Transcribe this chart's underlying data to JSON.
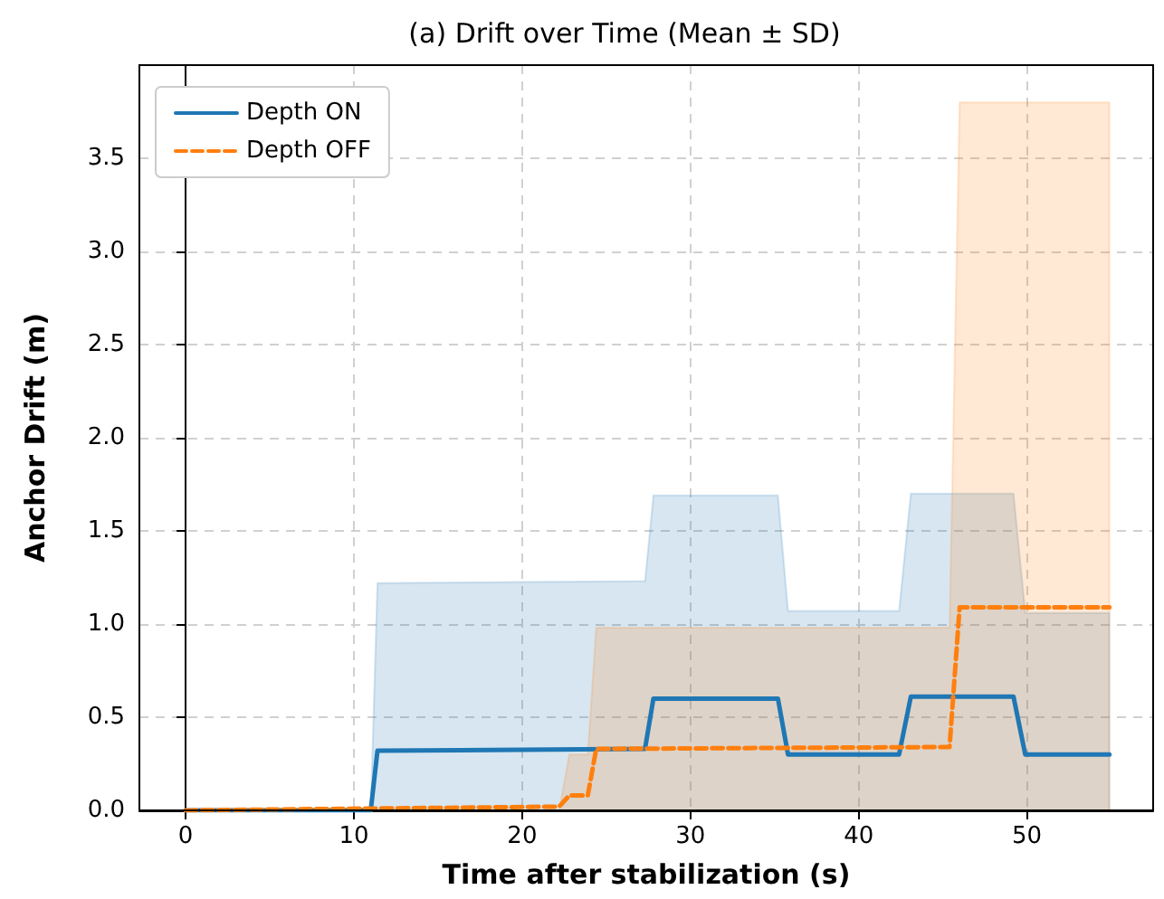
{
  "chart_data": {
    "type": "line",
    "title": "(a) Drift over Time (Mean ± SD)",
    "xlabel": "Time after stabilization (s)",
    "ylabel": "Anchor Drift (m)",
    "xlim": [
      -2.75,
      57.5
    ],
    "ylim": [
      0,
      4.0
    ],
    "xticks": [
      0,
      10,
      20,
      30,
      40,
      50
    ],
    "yticks": [
      {
        "value": 0,
        "label": "0.0"
      },
      0.5,
      {
        "value": 1,
        "label": "1.0"
      },
      1.5,
      {
        "value": 2,
        "label": "2.0"
      },
      2.5,
      {
        "value": 3,
        "label": "3.0"
      },
      3.5
    ],
    "grid": true,
    "legend": "top left",
    "marker": "none",
    "series": [
      {
        "name": "Depth ON",
        "color": "#1f77b4",
        "line_style": "solid",
        "x": [
          0,
          11,
          11.4,
          27.3,
          27.8,
          35.2,
          35.8,
          42.4,
          43.1,
          49.2,
          49.9,
          54.9
        ],
        "values": [
          0,
          0,
          0.32,
          0.33,
          0.6,
          0.6,
          0.3,
          0.3,
          0.61,
          0.61,
          0.3,
          0.3
        ],
        "lower": [
          0,
          0,
          0,
          0,
          0,
          0,
          0,
          0,
          0,
          0,
          0,
          0
        ],
        "upper": [
          0,
          0,
          1.22,
          1.23,
          1.69,
          1.69,
          1.07,
          1.07,
          1.7,
          1.7,
          1.06,
          1.06
        ]
      },
      {
        "name": "Depth OFF",
        "color": "#ff7f0e",
        "line_style": "dashed",
        "x": [
          0,
          22.2,
          22.8,
          23.9,
          24.4,
          45.4,
          46.0,
          54.9
        ],
        "values": [
          0,
          0.02,
          0.08,
          0.08,
          0.33,
          0.34,
          1.09,
          1.09
        ],
        "lower": [
          0,
          0,
          0,
          0,
          0,
          0,
          0,
          0
        ],
        "upper": [
          0,
          0,
          0.3,
          0.3,
          0.98,
          0.98,
          3.8,
          3.8
        ]
      }
    ]
  }
}
